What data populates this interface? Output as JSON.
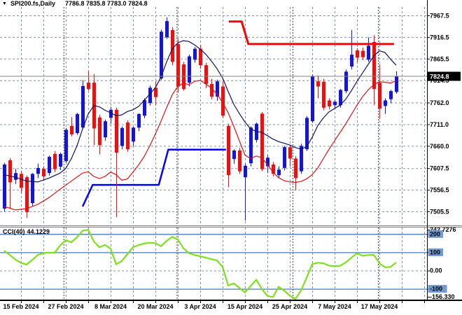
{
  "window": {
    "dropdown_icon": "▼",
    "title": "SPI200.fs,Daily",
    "title_ohlc": "7786.8 7835.8 7783.0 7824.8"
  },
  "chart_data": [
    {
      "type": "candlestick",
      "symbol": "SPI200.fs",
      "timeframe": "Daily",
      "last_ohlc": {
        "open": 7786.8,
        "high": 7835.8,
        "low": 7783.0,
        "close": 7824.8
      },
      "current_price": "7824.8",
      "y_axis": {
        "tick_labels": [
          "7967.5",
          "7916.5",
          "7865.5",
          "7814.5",
          "7762.0",
          "7711.0",
          "7660.0",
          "7607.5",
          "7556.5",
          "7505.5"
        ],
        "grid": "dashed"
      },
      "x_axis": {
        "tick_labels": [
          "15 Feb 2024",
          "27 Feb 2024",
          "8 Mar 2024",
          "20 Mar 2024",
          "3 Apr 2024",
          "15 Apr 2024",
          "25 Apr 2024",
          "7 May 2024",
          "17 May 2024"
        ],
        "tick_indices": [
          3,
          11,
          19,
          27,
          35,
          43,
          51,
          59,
          67
        ]
      },
      "month_separator_indices": [
        10.6,
        30.8,
        51.5,
        66.75
      ],
      "colors": {
        "bull": "#1616d0",
        "bear": "#e81212",
        "grid": "#7f93a5",
        "separator": "#444444",
        "price_line": "#808080",
        "ma_fast": "#10106a",
        "ma_slow": "#dd1111",
        "support": "#0000ff",
        "resistance": "#ff0000"
      },
      "candles_ohlc": [
        [
          7512,
          7620,
          7505,
          7616
        ],
        [
          7626,
          7631,
          7512,
          7574
        ],
        [
          7580,
          7606,
          7570,
          7596
        ],
        [
          7594,
          7601,
          7548,
          7561
        ],
        [
          7586,
          7590,
          7490,
          7504
        ],
        [
          7525,
          7596,
          7518,
          7594
        ],
        [
          7594,
          7618,
          7584,
          7608
        ],
        [
          7606,
          7612,
          7578,
          7588
        ],
        [
          7596,
          7637,
          7590,
          7634
        ],
        [
          7641,
          7648,
          7598,
          7605
        ],
        [
          7611,
          7644,
          7603,
          7641
        ],
        [
          7624,
          7702,
          7620,
          7698
        ],
        [
          7707,
          7728,
          7682,
          7687
        ],
        [
          7690,
          7738,
          7686,
          7735
        ],
        [
          7703,
          7815,
          7700,
          7801
        ],
        [
          7809,
          7836,
          7790,
          7794
        ],
        [
          7809,
          7829,
          7662,
          7701
        ],
        [
          7727,
          7733,
          7640,
          7662
        ],
        [
          7680,
          7722,
          7672,
          7718
        ],
        [
          7726,
          7752,
          7712,
          7745
        ],
        [
          7745,
          7750,
          7492,
          7644
        ],
        [
          7660,
          7706,
          7652,
          7702
        ],
        [
          7715,
          7720,
          7646,
          7652
        ],
        [
          7670,
          7705,
          7660,
          7703
        ],
        [
          7703,
          7737,
          7695,
          7735
        ],
        [
          7731,
          7772,
          7725,
          7768
        ],
        [
          7761,
          7802,
          7755,
          7797
        ],
        [
          7797,
          7812,
          7756,
          7775
        ],
        [
          7819,
          7934,
          7815,
          7929
        ],
        [
          7916,
          7963,
          7912,
          7954
        ],
        [
          7933,
          7940,
          7850,
          7858
        ],
        [
          7900,
          7912,
          7786,
          7800
        ],
        [
          7852,
          7858,
          7790,
          7794
        ],
        [
          7809,
          7875,
          7800,
          7871
        ],
        [
          7863,
          7893,
          7856,
          7889
        ],
        [
          7889,
          7898,
          7842,
          7850
        ],
        [
          7850,
          7856,
          7796,
          7806
        ],
        [
          7806,
          7818,
          7770,
          7776
        ],
        [
          7776,
          7816,
          7766,
          7812
        ],
        [
          7800,
          7812,
          7726,
          7731
        ],
        [
          7707,
          7712,
          7563,
          7591
        ],
        [
          7629,
          7652,
          7618,
          7649
        ],
        [
          7649,
          7655,
          7594,
          7600
        ],
        [
          7586,
          7618,
          7484,
          7613
        ],
        [
          7619,
          7706,
          7612,
          7703
        ],
        [
          7674,
          7715,
          7668,
          7712
        ],
        [
          7736,
          7740,
          7600,
          7605
        ],
        [
          7612,
          7638,
          7596,
          7632
        ],
        [
          7616,
          7622,
          7588,
          7594
        ],
        [
          7591,
          7612,
          7585,
          7604
        ],
        [
          7608,
          7660,
          7602,
          7657
        ],
        [
          7657,
          7662,
          7612,
          7630
        ],
        [
          7630,
          7636,
          7556,
          7584
        ],
        [
          7600,
          7665,
          7594,
          7660
        ],
        [
          7652,
          7730,
          7648,
          7726
        ],
        [
          7718,
          7828,
          7714,
          7824
        ],
        [
          7812,
          7826,
          7772,
          7800
        ],
        [
          7811,
          7818,
          7744,
          7750
        ],
        [
          7767,
          7772,
          7746,
          7753
        ],
        [
          7756,
          7768,
          7748,
          7764
        ],
        [
          7756,
          7794,
          7750,
          7792
        ],
        [
          7789,
          7840,
          7784,
          7835
        ],
        [
          7847,
          7933,
          7840,
          7875
        ],
        [
          7885,
          7890,
          7858,
          7868
        ],
        [
          7884,
          7892,
          7862,
          7869
        ],
        [
          7863,
          7916,
          7858,
          7896
        ],
        [
          7905,
          7921,
          7756,
          7794
        ],
        [
          7809,
          7852,
          7723,
          7748
        ],
        [
          7754,
          7772,
          7735,
          7767
        ],
        [
          7770,
          7792,
          7760,
          7789
        ],
        [
          7786.8,
          7835.8,
          7783.0,
          7824.8
        ]
      ],
      "overlays": {
        "ma_fast_points": [
          [
            0,
            7592
          ],
          [
            2,
            7586
          ],
          [
            4,
            7577
          ],
          [
            6,
            7575
          ],
          [
            8,
            7584
          ],
          [
            10,
            7596
          ],
          [
            11,
            7607
          ],
          [
            12,
            7630
          ],
          [
            13,
            7660
          ],
          [
            14,
            7700
          ],
          [
            15,
            7735
          ],
          [
            16,
            7755
          ],
          [
            17,
            7752
          ],
          [
            18,
            7744
          ],
          [
            19,
            7738
          ],
          [
            20,
            7731
          ],
          [
            21,
            7733
          ],
          [
            22,
            7741
          ],
          [
            23,
            7745
          ],
          [
            24,
            7753
          ],
          [
            25,
            7767
          ],
          [
            26,
            7782
          ],
          [
            27,
            7797
          ],
          [
            28,
            7822
          ],
          [
            29,
            7858
          ],
          [
            30,
            7888
          ],
          [
            31,
            7903
          ],
          [
            32,
            7908
          ],
          [
            33,
            7906
          ],
          [
            34,
            7898
          ],
          [
            35,
            7888
          ],
          [
            36,
            7876
          ],
          [
            37,
            7860
          ],
          [
            38,
            7842
          ],
          [
            39,
            7820
          ],
          [
            40,
            7788
          ],
          [
            41,
            7758
          ],
          [
            42,
            7736
          ],
          [
            43,
            7716
          ],
          [
            44,
            7700
          ],
          [
            45,
            7694
          ],
          [
            46,
            7692
          ],
          [
            47,
            7684
          ],
          [
            48,
            7676
          ],
          [
            49,
            7670
          ],
          [
            50,
            7666
          ],
          [
            51,
            7662
          ],
          [
            52,
            7656
          ],
          [
            53,
            7652
          ],
          [
            54,
            7658
          ],
          [
            55,
            7680
          ],
          [
            56,
            7708
          ],
          [
            57,
            7726
          ],
          [
            58,
            7740
          ],
          [
            59,
            7748
          ],
          [
            60,
            7756
          ],
          [
            61,
            7770
          ],
          [
            62,
            7790
          ],
          [
            63,
            7812
          ],
          [
            64,
            7832
          ],
          [
            65,
            7852
          ],
          [
            66,
            7872
          ],
          [
            67,
            7884
          ],
          [
            68,
            7880
          ],
          [
            69,
            7864
          ],
          [
            70,
            7850
          ]
        ],
        "ma_slow_points": [
          [
            0,
            7517
          ],
          [
            2,
            7509
          ],
          [
            4,
            7512
          ],
          [
            6,
            7522
          ],
          [
            8,
            7538
          ],
          [
            10,
            7558
          ],
          [
            12,
            7577
          ],
          [
            14,
            7596
          ],
          [
            15,
            7599
          ],
          [
            16,
            7588
          ],
          [
            17,
            7583
          ],
          [
            18,
            7588
          ],
          [
            19,
            7598
          ],
          [
            20,
            7592
          ],
          [
            21,
            7579
          ],
          [
            22,
            7582
          ],
          [
            23,
            7598
          ],
          [
            24,
            7615
          ],
          [
            25,
            7635
          ],
          [
            26,
            7660
          ],
          [
            27,
            7688
          ],
          [
            28,
            7718
          ],
          [
            29,
            7750
          ],
          [
            30,
            7780
          ],
          [
            31,
            7800
          ],
          [
            32,
            7808
          ],
          [
            33,
            7804
          ],
          [
            34,
            7812
          ],
          [
            35,
            7814
          ],
          [
            36,
            7806
          ],
          [
            37,
            7796
          ],
          [
            38,
            7782
          ],
          [
            39,
            7762
          ],
          [
            40,
            7738
          ],
          [
            41,
            7706
          ],
          [
            42,
            7672
          ],
          [
            43,
            7638
          ],
          [
            44,
            7630
          ],
          [
            45,
            7636
          ],
          [
            46,
            7632
          ],
          [
            47,
            7616
          ],
          [
            48,
            7598
          ],
          [
            49,
            7585
          ],
          [
            50,
            7578
          ],
          [
            51,
            7575
          ],
          [
            52,
            7574
          ],
          [
            53,
            7576
          ],
          [
            54,
            7582
          ],
          [
            55,
            7592
          ],
          [
            56,
            7608
          ],
          [
            57,
            7630
          ],
          [
            58,
            7652
          ],
          [
            59,
            7672
          ],
          [
            60,
            7692
          ],
          [
            61,
            7712
          ],
          [
            62,
            7734
          ],
          [
            63,
            7756
          ],
          [
            64,
            7776
          ],
          [
            65,
            7792
          ],
          [
            66,
            7804
          ],
          [
            67,
            7811
          ],
          [
            68,
            7810
          ],
          [
            69,
            7808
          ],
          [
            70,
            7814
          ]
        ],
        "support_step_points": [
          [
            14,
            7517
          ],
          [
            15.8,
            7568
          ],
          [
            27.6,
            7568
          ],
          [
            29.3,
            7651
          ],
          [
            39.6,
            7651
          ]
        ],
        "resistance_step_points": [
          [
            40.1,
            7953
          ],
          [
            42.4,
            7953
          ],
          [
            43.6,
            7900
          ],
          [
            69.6,
            7900
          ]
        ]
      }
    },
    {
      "type": "line",
      "indicator": "CCI(40)",
      "current_value": "44.1229",
      "color": "#7de01e",
      "level_color": "#4a7ab8",
      "level_badge_color": "#6f9bd1",
      "y_axis_labels": [
        {
          "text": "242.7276",
          "value": 242.7276,
          "highlight": false
        },
        {
          "text": "200",
          "value": 200,
          "highlight": true
        },
        {
          "text": "100",
          "value": 100,
          "highlight": true
        },
        {
          "text": "0.00",
          "value": 0,
          "highlight": false
        },
        {
          "text": "-100",
          "value": -100,
          "highlight": true
        },
        {
          "text": "-156.330",
          "value": -156.33,
          "highlight": false
        }
      ],
      "levels": [
        200,
        100,
        -100
      ],
      "values": [
        108,
        85,
        60,
        42,
        33,
        58,
        85,
        95,
        98,
        97,
        138,
        166,
        155,
        182,
        218,
        223,
        160,
        128,
        140,
        120,
        34,
        52,
        90,
        128,
        140,
        148,
        152,
        150,
        133,
        162,
        185,
        170,
        122,
        95,
        85,
        78,
        71,
        62,
        55,
        20,
        -82,
        -70,
        -95,
        -120,
        -85,
        -50,
        -100,
        -139,
        -145,
        -89,
        -110,
        -137,
        -156,
        -110,
        -40,
        35,
        43,
        40,
        27,
        24,
        26,
        45,
        70,
        95,
        81,
        85,
        86,
        40,
        18,
        20,
        44.12
      ]
    }
  ]
}
